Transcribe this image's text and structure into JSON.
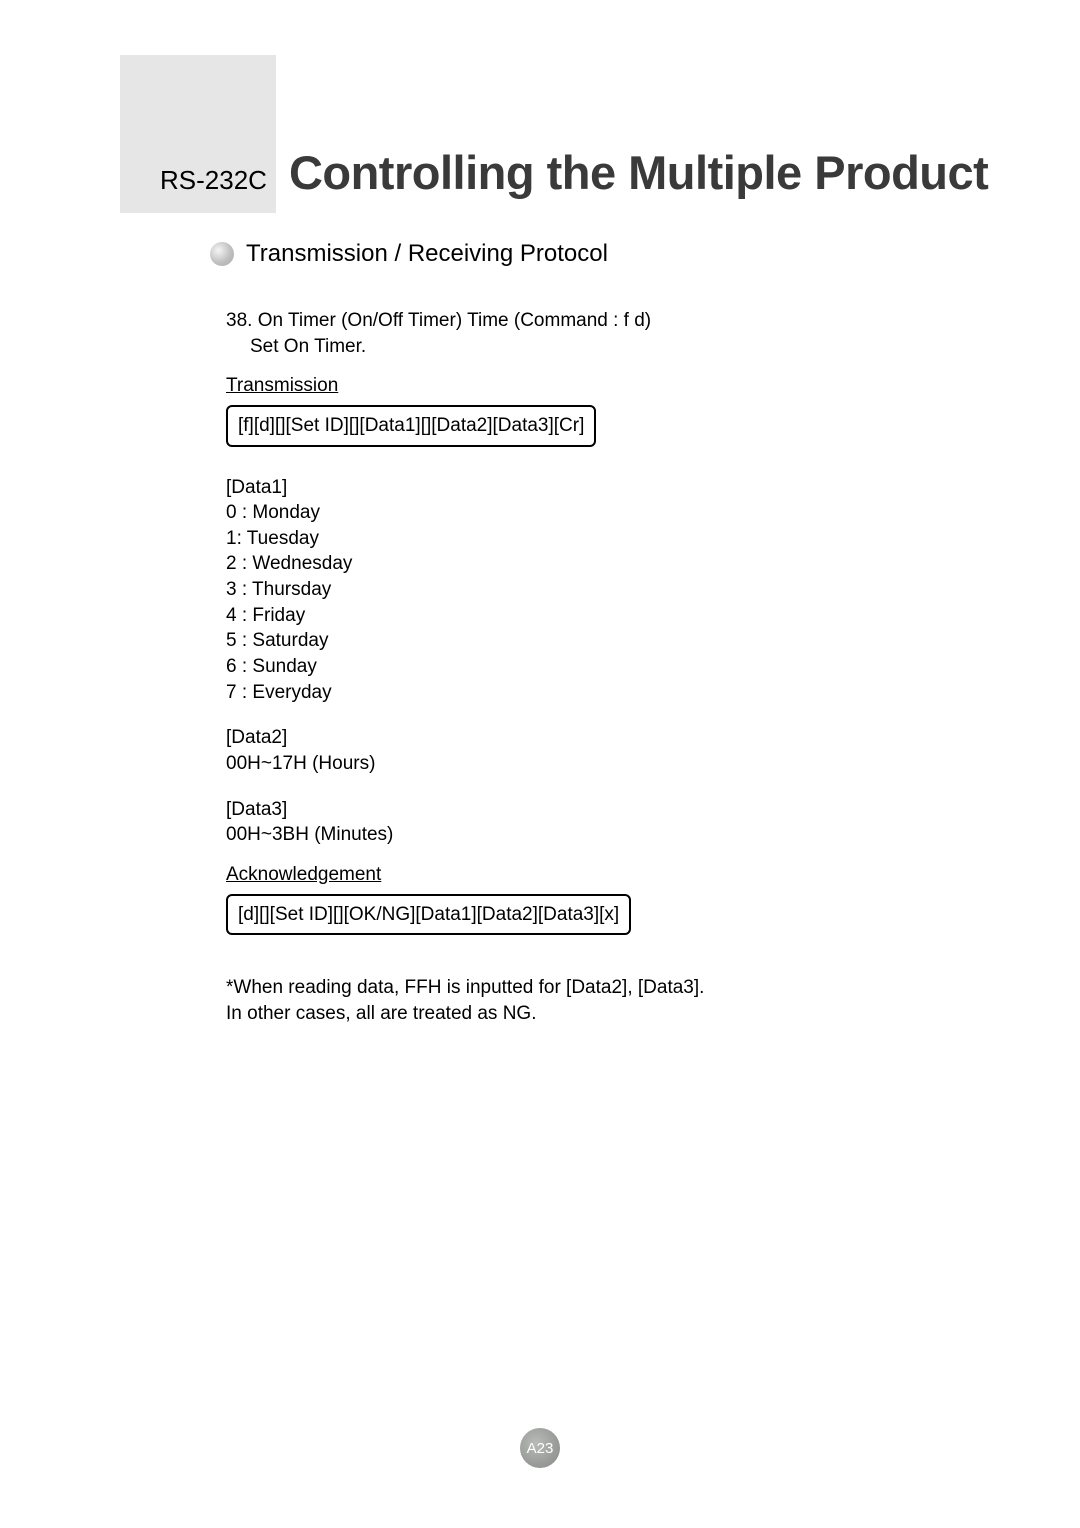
{
  "header": {
    "prefix": "RS-232C",
    "title": "Controlling the Multiple Product"
  },
  "section": {
    "title": "Transmission / Receiving Protocol"
  },
  "item": {
    "number_line": "38. On Timer (On/Off Timer) Time (Command : f d)",
    "desc_line": "Set On Timer."
  },
  "transmission": {
    "label": "Transmission",
    "code": "[f][d][][Set ID][][Data1][][Data2][Data3][Cr]"
  },
  "data1": {
    "label": "[Data1]",
    "lines": [
      "0 : Monday",
      "1: Tuesday",
      "2 : Wednesday",
      "3 : Thursday",
      "4 : Friday",
      "5 : Saturday",
      "6 : Sunday",
      "7 : Everyday"
    ]
  },
  "data2": {
    "label": "[Data2]",
    "line": "00H~17H (Hours)"
  },
  "data3": {
    "label": "[Data3]",
    "line": "00H~3BH (Minutes)"
  },
  "ack": {
    "label": "Acknowledgement",
    "code": "[d][][Set ID][][OK/NG][Data1][Data2][Data3][x]"
  },
  "note": {
    "line1": "*When reading data, FFH is inputted for [Data2], [Data3].",
    "line2": "In other cases, all are treated as NG."
  },
  "page": {
    "number": "A23"
  },
  "colors": {
    "gray_block": "#e6e6e6",
    "title_text": "#3a3a3a",
    "body_text": "#000000",
    "page_circle": "#9a9c9a"
  },
  "typography": {
    "prefix_fontsize": 26,
    "title_fontsize": 47,
    "section_fontsize": 24,
    "body_fontsize": 19
  }
}
